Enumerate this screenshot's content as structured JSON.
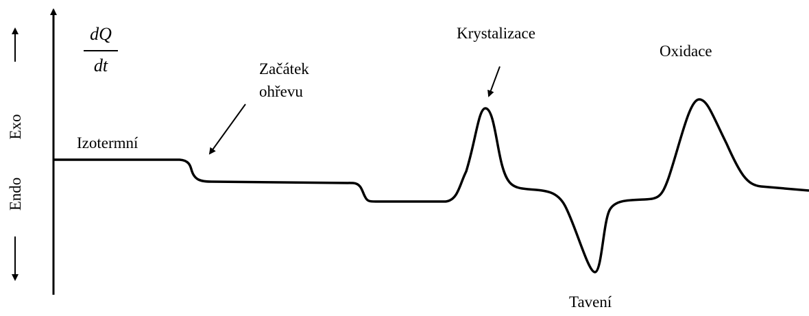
{
  "y_axis": {
    "label": {
      "numerator": "dQ",
      "denominator": "dt"
    },
    "exo": "Exo",
    "endo": "Endo"
  },
  "annotations": {
    "isothermal": "Izotermní",
    "heating_start": [
      "Začátek",
      "ohřevu"
    ],
    "crystallization": "Krystalizace",
    "oxidation": "Oxidace",
    "melting": "Tavení"
  }
}
